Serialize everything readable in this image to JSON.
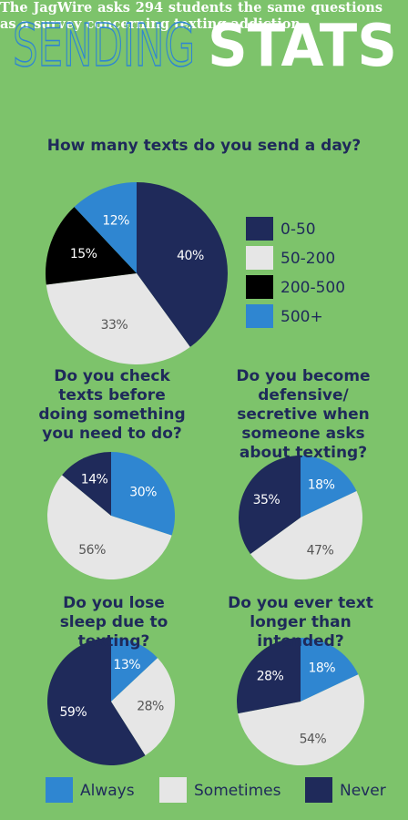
{
  "header": {
    "title_light": "SENDING",
    "title_bold": "STATS",
    "subtitle": "The JagWire asks 294 students the same questions as a survey concerning texting addiction"
  },
  "legend": {
    "items": [
      {
        "name": "Always",
        "color": "#2f86d1"
      },
      {
        "name": "Sometimes",
        "color": "#e6e6e6"
      },
      {
        "name": "Never",
        "color": "#1f2a5a"
      }
    ]
  },
  "chart_data": [
    {
      "type": "pie",
      "title": "How many texts do you send a day?",
      "categories": [
        "0-50",
        "50-200",
        "200-500",
        "500+"
      ],
      "values": [
        40,
        33,
        15,
        12
      ],
      "value_labels": [
        "40%",
        "33%",
        "15%",
        "12%"
      ],
      "colors": [
        "#1f2a5a",
        "#e6e6e6",
        "#000000",
        "#2f86d1"
      ],
      "legend_position": "right"
    },
    {
      "type": "pie",
      "title": "Do you check texts before doing something you need to do?",
      "values": [
        30,
        56,
        14
      ],
      "value_labels": [
        "30%",
        "56%",
        "14%"
      ]
    },
    {
      "type": "pie",
      "title": "Do you become defensive/ secretive when someone asks about texting?",
      "values": [
        18,
        47,
        35
      ],
      "value_labels": [
        "18%",
        "47%",
        "35%"
      ]
    },
    {
      "type": "pie",
      "title": "Do you lose sleep due to texting?",
      "values": [
        13,
        28,
        59
      ],
      "value_labels": [
        "13%",
        "28%",
        "59%"
      ]
    },
    {
      "type": "pie",
      "title": "Do you ever text longer than intended?",
      "values": [
        18,
        54,
        28
      ],
      "value_labels": [
        "18%",
        "54%",
        "28%"
      ]
    }
  ]
}
